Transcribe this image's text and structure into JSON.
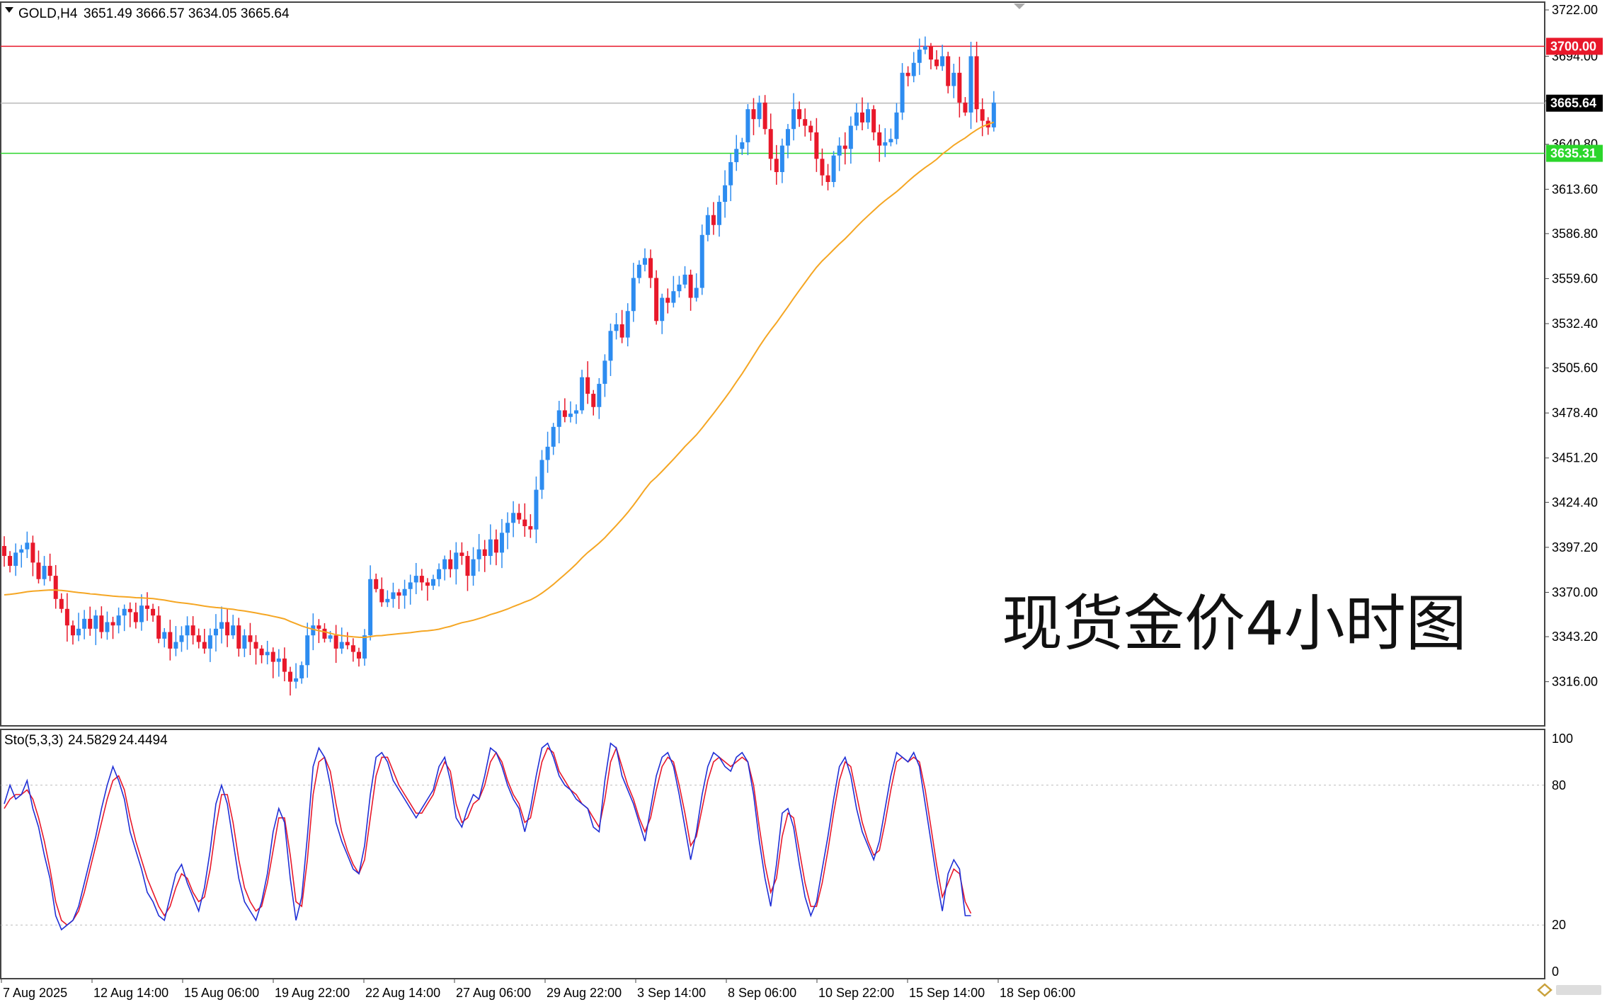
{
  "header": {
    "symbol": "GOLD,H4",
    "ohlc": "3651.49 3666.57 3634.05 3665.64"
  },
  "annotation": "现货金价4小时图",
  "colors": {
    "bull": "#2D8CF0",
    "bear": "#E8182A",
    "ma": "#F5A623",
    "resistance": "#E8182A",
    "support": "#2BD62B",
    "stoch_main": "#1F2FD6",
    "stoch_signal": "#E8182A",
    "current": "#000000"
  },
  "chart_data": [
    {
      "type": "candlestick",
      "symbol": "GOLD",
      "timeframe": "H4",
      "ylim": [
        3300,
        3722
      ],
      "y_ticks": [
        "3722.00",
        "3694.00",
        "3667.00",
        "3640.80",
        "3613.60",
        "3586.80",
        "3559.60",
        "3532.40",
        "3505.60",
        "3478.40",
        "3451.20",
        "3424.40",
        "3397.20",
        "3370.00",
        "3343.20",
        "3316.00"
      ],
      "x_labels": [
        "7 Aug 2025",
        "12 Aug 14:00",
        "15 Aug 06:00",
        "19 Aug 22:00",
        "22 Aug 14:00",
        "27 Aug 06:00",
        "29 Aug 22:00",
        "3 Sep 14:00",
        "8 Sep 06:00",
        "10 Sep 22:00",
        "15 Sep 14:00",
        "18 Sep 06:00"
      ],
      "levels": [
        {
          "label": "3700.00",
          "value": 3700.0,
          "role": "resistance"
        },
        {
          "label": "3665.64",
          "value": 3665.64,
          "role": "current"
        },
        {
          "label": "3635.31",
          "value": 3635.31,
          "role": "support"
        }
      ],
      "closes": [
        3392,
        3386,
        3394,
        3396,
        3400,
        3388,
        3378,
        3386,
        3380,
        3366,
        3360,
        3350,
        3344,
        3348,
        3354,
        3348,
        3356,
        3346,
        3352,
        3350,
        3356,
        3360,
        3358,
        3352,
        3362,
        3360,
        3356,
        3342,
        3346,
        3336,
        3340,
        3344,
        3350,
        3344,
        3340,
        3336,
        3344,
        3348,
        3352,
        3344,
        3350,
        3336,
        3344,
        3340,
        3336,
        3332,
        3334,
        3328,
        3330,
        3322,
        3316,
        3318,
        3326,
        3344,
        3350,
        3348,
        3342,
        3344,
        3336,
        3340,
        3338,
        3334,
        3330,
        3344,
        3378,
        3372,
        3364,
        3366,
        3370,
        3368,
        3372,
        3376,
        3380,
        3376,
        3374,
        3378,
        3384,
        3390,
        3384,
        3394,
        3392,
        3380,
        3390,
        3396,
        3392,
        3402,
        3394,
        3406,
        3412,
        3418,
        3414,
        3410,
        3408,
        3432,
        3450,
        3458,
        3470,
        3480,
        3476,
        3478,
        3480,
        3500,
        3490,
        3482,
        3496,
        3510,
        3528,
        3532,
        3524,
        3540,
        3560,
        3568,
        3572,
        3560,
        3534,
        3548,
        3545,
        3552,
        3556,
        3562,
        3548,
        3554,
        3586,
        3598,
        3592,
        3606,
        3616,
        3630,
        3638,
        3642,
        3662,
        3656,
        3666,
        3650,
        3632,
        3624,
        3640,
        3650,
        3662,
        3656,
        3652,
        3648,
        3632,
        3622,
        3618,
        3634,
        3640,
        3638,
        3652,
        3660,
        3654,
        3662,
        3648,
        3640,
        3642,
        3644,
        3660,
        3684,
        3682,
        3690,
        3698,
        3700,
        3692,
        3688,
        3694,
        3676,
        3684,
        3666,
        3660,
        3694,
        3662,
        3655,
        3651,
        3666
      ],
      "ma_period_note": "",
      "indicator": {
        "name": "Sto(5,3,3)",
        "main_value": "24.5829",
        "signal_value": "24.4494",
        "ylim": [
          0,
          100
        ],
        "y_ticks": [
          "100",
          "80",
          "20",
          "0"
        ],
        "levels": [
          80,
          20
        ],
        "main": [
          72,
          80,
          74,
          76,
          82,
          70,
          62,
          50,
          40,
          24,
          18,
          20,
          22,
          28,
          38,
          48,
          58,
          70,
          80,
          88,
          82,
          74,
          60,
          52,
          44,
          34,
          30,
          24,
          22,
          32,
          42,
          46,
          38,
          32,
          26,
          36,
          52,
          72,
          80,
          72,
          56,
          40,
          30,
          26,
          22,
          30,
          42,
          60,
          70,
          64,
          40,
          22,
          32,
          58,
          88,
          96,
          92,
          80,
          64,
          56,
          50,
          44,
          42,
          54,
          76,
          92,
          94,
          90,
          82,
          78,
          74,
          70,
          66,
          70,
          74,
          78,
          88,
          92,
          82,
          66,
          62,
          70,
          76,
          74,
          84,
          96,
          94,
          88,
          80,
          74,
          70,
          60,
          70,
          84,
          96,
          98,
          92,
          84,
          80,
          78,
          74,
          72,
          70,
          62,
          60,
          82,
          98,
          96,
          84,
          78,
          72,
          64,
          56,
          70,
          84,
          92,
          94,
          88,
          76,
          62,
          48,
          60,
          76,
          88,
          94,
          92,
          88,
          86,
          92,
          94,
          90,
          76,
          56,
          40,
          28,
          46,
          68,
          70,
          62,
          46,
          32,
          24,
          30,
          44,
          58,
          74,
          88,
          92,
          84,
          70,
          60,
          54,
          48,
          56,
          70,
          84,
          94,
          92,
          90,
          94,
          88,
          72,
          56,
          40,
          26,
          42,
          48,
          44,
          24,
          24
        ],
        "signal": [
          70,
          74,
          76,
          76,
          78,
          74,
          66,
          56,
          44,
          30,
          22,
          20,
          22,
          26,
          34,
          44,
          54,
          64,
          74,
          82,
          84,
          78,
          66,
          56,
          48,
          40,
          34,
          28,
          24,
          28,
          36,
          42,
          40,
          34,
          30,
          32,
          44,
          62,
          76,
          76,
          64,
          48,
          36,
          30,
          26,
          28,
          38,
          52,
          66,
          66,
          50,
          30,
          28,
          48,
          76,
          90,
          92,
          86,
          72,
          60,
          52,
          46,
          42,
          48,
          66,
          84,
          92,
          92,
          86,
          80,
          76,
          72,
          68,
          68,
          72,
          76,
          84,
          90,
          86,
          72,
          64,
          66,
          72,
          74,
          80,
          90,
          94,
          90,
          82,
          76,
          72,
          64,
          66,
          78,
          90,
          96,
          94,
          86,
          82,
          78,
          76,
          72,
          70,
          66,
          62,
          74,
          90,
          96,
          88,
          80,
          74,
          66,
          60,
          66,
          78,
          88,
          92,
          90,
          80,
          68,
          54,
          58,
          70,
          82,
          90,
          92,
          90,
          88,
          90,
          92,
          90,
          80,
          62,
          46,
          34,
          40,
          58,
          68,
          66,
          52,
          38,
          28,
          28,
          38,
          52,
          68,
          82,
          90,
          88,
          76,
          64,
          56,
          50,
          52,
          64,
          78,
          90,
          92,
          90,
          92,
          90,
          78,
          62,
          46,
          32,
          38,
          44,
          42,
          30,
          25
        ]
      }
    }
  ]
}
